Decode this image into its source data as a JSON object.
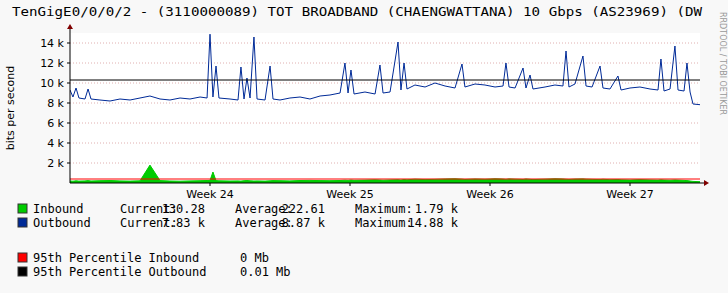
{
  "chart_data": {
    "type": "line",
    "title": "TenGigE0/0/0/2 - (3110000089) TOT BROADBAND (CHAENGWATTANA) 10 Gbps (AS23969) (DW",
    "y_label": "bits per second",
    "watermark": "RRDTOOL / TOBI OETIKER",
    "xlim": [
      23,
      27.5
    ],
    "xticks": [
      {
        "value": 24,
        "label": "Week 24"
      },
      {
        "value": 25,
        "label": "Week 25"
      },
      {
        "value": 26,
        "label": "Week 26"
      },
      {
        "value": 27,
        "label": "Week 27"
      }
    ],
    "ylim": [
      0,
      15000
    ],
    "yticks": [
      {
        "value": 2000,
        "label": "2 k"
      },
      {
        "value": 4000,
        "label": "4 k"
      },
      {
        "value": 6000,
        "label": "6 k"
      },
      {
        "value": 8000,
        "label": "8 k"
      },
      {
        "value": 10000,
        "label": "10 k"
      },
      {
        "value": 12000,
        "label": "12 k"
      },
      {
        "value": 14000,
        "label": "14 k"
      }
    ],
    "grid": true,
    "legend": "bottom",
    "stat_labels": [
      "Current:",
      "Average:",
      "Maximum:"
    ],
    "x": [
      23.0,
      23.021,
      23.043,
      23.064,
      23.107,
      23.129,
      23.15,
      23.214,
      23.286,
      23.357,
      23.429,
      23.5,
      23.571,
      23.643,
      23.714,
      23.786,
      23.857,
      23.929,
      23.979,
      24.0,
      24.021,
      24.043,
      24.064,
      24.143,
      24.2,
      24.221,
      24.243,
      24.264,
      24.286,
      24.314,
      24.336,
      24.393,
      24.429,
      24.45,
      24.5,
      24.571,
      24.643,
      24.714,
      24.786,
      24.857,
      24.929,
      24.964,
      24.986,
      25.007,
      25.029,
      25.107,
      25.179,
      25.214,
      25.236,
      25.286,
      25.343,
      25.364,
      25.386,
      25.407,
      25.464,
      25.536,
      25.607,
      25.679,
      25.75,
      25.8,
      25.821,
      25.893,
      25.964,
      26.036,
      26.093,
      26.114,
      26.136,
      26.179,
      26.236,
      26.257,
      26.286,
      26.307,
      26.393,
      26.464,
      26.521,
      26.543,
      26.564,
      26.607,
      26.664,
      26.686,
      26.729,
      26.786,
      26.807,
      26.857,
      26.914,
      26.936,
      27.0,
      27.071,
      27.143,
      27.2,
      27.221,
      27.243,
      27.286,
      27.321,
      27.343,
      27.386,
      27.407,
      27.429,
      27.45,
      27.5
    ],
    "series": [
      {
        "name": "Inbound",
        "type": "area",
        "color": "#00cc00",
        "values": [
          200,
          180,
          220,
          190,
          210,
          240,
          200,
          230,
          250,
          210,
          190,
          220,
          1790,
          240,
          200,
          180,
          210,
          230,
          250,
          260,
          1100,
          240,
          220,
          200,
          210,
          190,
          230,
          250,
          220,
          200,
          210,
          190,
          220,
          240,
          230,
          210,
          250,
          260,
          240,
          230,
          250,
          280,
          260,
          300,
          270,
          290,
          320,
          300,
          280,
          310,
          330,
          300,
          350,
          320,
          380,
          340,
          360,
          400,
          420,
          380,
          350,
          400,
          370,
          420,
          390,
          360,
          410,
          380,
          350,
          400,
          360,
          340,
          380,
          420,
          400,
          370,
          350,
          390,
          410,
          380,
          360,
          340,
          370,
          330,
          350,
          320,
          300,
          340,
          310,
          290,
          320,
          300,
          280,
          310,
          290,
          260,
          240,
          200,
          160,
          130
        ],
        "stats": [
          "130.28",
          "222.61",
          "1.79 k"
        ]
      },
      {
        "name": "Outbound",
        "type": "line",
        "color": "#002a97",
        "values": [
          9300,
          8600,
          9500,
          8500,
          8400,
          9400,
          8400,
          8300,
          8200,
          8400,
          8300,
          8500,
          8700,
          8400,
          8300,
          8500,
          8400,
          8600,
          8500,
          14880,
          8600,
          11700,
          8500,
          8400,
          8300,
          11600,
          8400,
          10500,
          8500,
          14600,
          8400,
          8300,
          11700,
          8400,
          8300,
          8500,
          8600,
          8400,
          8700,
          8800,
          9000,
          12000,
          9000,
          11300,
          8900,
          9100,
          8900,
          11800,
          9000,
          9100,
          14100,
          9300,
          12000,
          9400,
          9800,
          9600,
          10000,
          9700,
          9500,
          11900,
          9600,
          9900,
          9800,
          9600,
          9700,
          12000,
          9600,
          9500,
          11500,
          9500,
          10800,
          9400,
          9600,
          9800,
          9700,
          13200,
          9600,
          9900,
          12700,
          9700,
          9600,
          11700,
          9500,
          9400,
          10700,
          9300,
          9500,
          9600,
          9400,
          9300,
          12400,
          9200,
          9400,
          13700,
          9300,
          9200,
          12000,
          9100,
          7900,
          7830
        ],
        "stats": [
          "7.83 k",
          "8.87 k",
          "14.88 k"
        ]
      }
    ],
    "percentiles": [
      {
        "name": "95th Percentile Inbound",
        "label": "0 Mb",
        "value": 400,
        "color": "#ff0000"
      },
      {
        "name": "95th Percentile Outbound",
        "label": "0.01 Mb",
        "value": 10300,
        "color": "#000000"
      }
    ]
  }
}
